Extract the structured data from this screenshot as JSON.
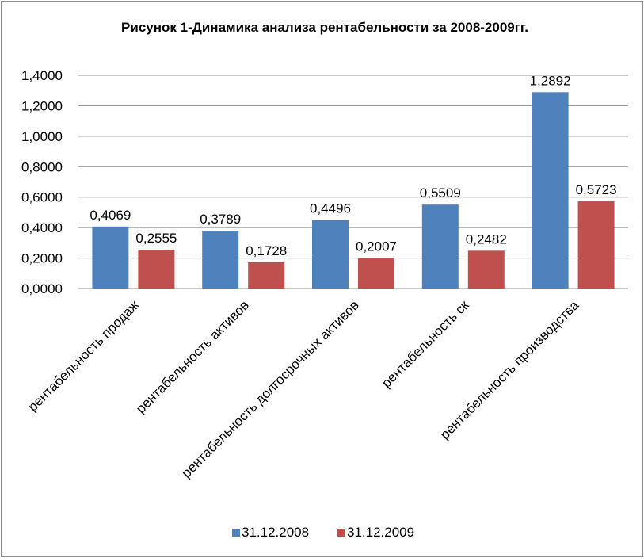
{
  "chart_data": {
    "type": "bar",
    "title": "Рисунок 1-Динамика анализа рентабельности за 2008-2009гг.",
    "categories": [
      "рентабельность продаж",
      "рентабельность активов",
      "рентабельность долгосрочных активов",
      "рентабельность ск",
      "рентабельность производства"
    ],
    "series": [
      {
        "name": "31.12.2008",
        "color": "#4f81bd",
        "values": [
          0.4069,
          0.3789,
          0.4496,
          0.5509,
          1.2892
        ],
        "labels": [
          "0,4069",
          "0,3789",
          "0,4496",
          "0,5509",
          "1,2892"
        ]
      },
      {
        "name": "31.12.2009",
        "color": "#c0504d",
        "values": [
          0.2555,
          0.1728,
          0.2007,
          0.2482,
          0.5723
        ],
        "labels": [
          "0,2555",
          "0,1728",
          "0,2007",
          "0,2482",
          "0,5723"
        ]
      }
    ],
    "ylim": [
      0,
      1.4
    ],
    "yticks": [
      0,
      0.2,
      0.4,
      0.6,
      0.8,
      1.0,
      1.2,
      1.4
    ],
    "ytick_labels": [
      "0,0000",
      "0,2000",
      "0,4000",
      "0,6000",
      "0,8000",
      "1,0000",
      "1,2000",
      "1,4000"
    ],
    "grid": true,
    "legend_position": "bottom"
  }
}
